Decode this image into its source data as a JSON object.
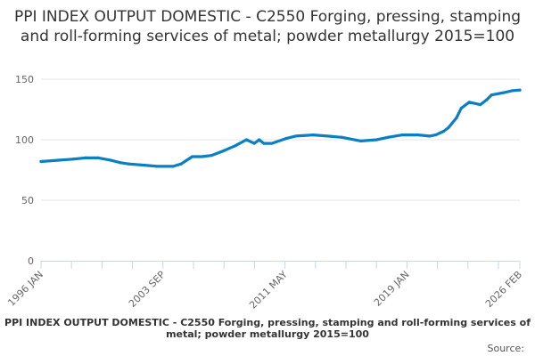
{
  "chart_data": {
    "type": "line",
    "title": "PPI INDEX OUTPUT DOMESTIC - C2550 Forging, pressing, stamping and roll-forming services of metal; powder metallurgy 2015=100",
    "xlabel": "",
    "ylabel": "",
    "xlim": [
      1996.0,
      2026.083
    ],
    "ylim": [
      0,
      150
    ],
    "yticks": [
      "0",
      "50",
      "100",
      "150"
    ],
    "xtick_labels": [
      {
        "label": "1996 JAN",
        "x": 1996.0
      },
      {
        "label": "2003 SEP",
        "x": 2003.667
      },
      {
        "label": "2011 MAY",
        "x": 2011.333
      },
      {
        "label": "2019 JAN",
        "x": 2019.0
      },
      {
        "label": "2026 FEB",
        "x": 2026.083
      }
    ],
    "grid": true,
    "legend": "none",
    "color": "#0a7fc4",
    "series": [
      {
        "name": "PPI INDEX OUTPUT DOMESTIC - C2550 Forging, pressing, stamping and roll-forming services of metal; powder metallurgy 2015=100",
        "x": [
          1996.0,
          1997.0,
          1998.0,
          1998.8,
          1999.6,
          2000.4,
          2001.0,
          2001.5,
          2002.5,
          2003.3,
          2004.3,
          2004.8,
          2005.5,
          2006.1,
          2006.7,
          2007.5,
          2008.2,
          2008.9,
          2009.4,
          2009.7,
          2010.0,
          2010.5,
          2011.4,
          2012.0,
          2013.1,
          2014.0,
          2014.9,
          2016.1,
          2017.1,
          2017.8,
          2018.7,
          2019.7,
          2020.4,
          2020.8,
          2021.3,
          2021.6,
          2022.1,
          2022.4,
          2022.9,
          2023.6,
          2024.0,
          2024.3,
          2025.1,
          2025.6,
          2026.083
        ],
        "y": [
          82,
          83,
          84,
          85,
          85,
          83,
          81,
          80,
          79,
          78,
          78,
          80,
          86,
          86,
          87,
          91,
          95,
          100,
          97,
          100,
          97,
          97,
          101,
          103,
          104,
          103,
          102,
          99,
          100,
          102,
          104,
          104,
          103,
          104,
          107,
          110,
          118,
          126,
          131,
          129,
          133,
          137,
          139,
          140.5,
          141
        ]
      }
    ]
  },
  "caption": "PPI INDEX OUTPUT DOMESTIC - C2550 Forging, pressing, stamping and roll-forming services of metal; powder metallurgy 2015=100",
  "source_label": "Source:"
}
